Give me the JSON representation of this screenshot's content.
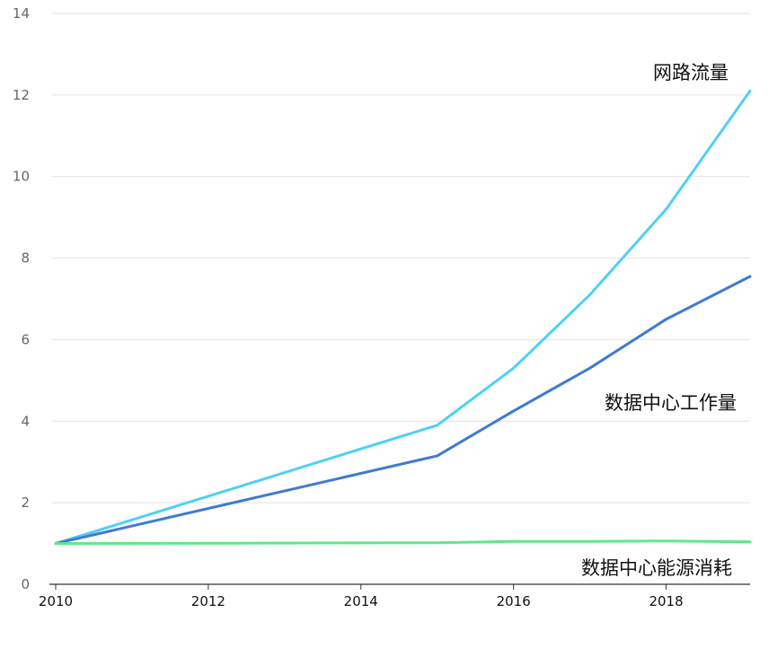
{
  "chart_data": {
    "type": "line",
    "title": "",
    "xlabel": "",
    "ylabel": "",
    "xlim": [
      2010,
      2019.1
    ],
    "ylim": [
      0,
      14
    ],
    "xticks": [
      2010,
      2012,
      2014,
      2016,
      2018
    ],
    "yticks": [
      0,
      2,
      4,
      6,
      8,
      10,
      12,
      14
    ],
    "x_tick_labels": [
      "2010",
      "2012",
      "2014",
      "2016",
      "2018"
    ],
    "y_tick_labels": [
      "0",
      "2",
      "4",
      "6",
      "8",
      "10",
      "12",
      "14"
    ],
    "grid": true,
    "legend": "inline labels",
    "x": [
      2010,
      2015,
      2016,
      2017,
      2018,
      2019.1
    ],
    "series": [
      {
        "name": "网路流量",
        "color": "#4fd0f5",
        "values": [
          1.0,
          3.9,
          5.3,
          7.1,
          9.2,
          12.1
        ]
      },
      {
        "name": "数据中心工作量",
        "color": "#3f7ad1",
        "values": [
          1.0,
          3.15,
          4.25,
          5.3,
          6.5,
          7.55
        ]
      },
      {
        "name": "数据中心能源消耗",
        "color": "#5ee88a",
        "values": [
          1.0,
          1.02,
          1.05,
          1.05,
          1.06,
          1.04
        ]
      }
    ]
  }
}
